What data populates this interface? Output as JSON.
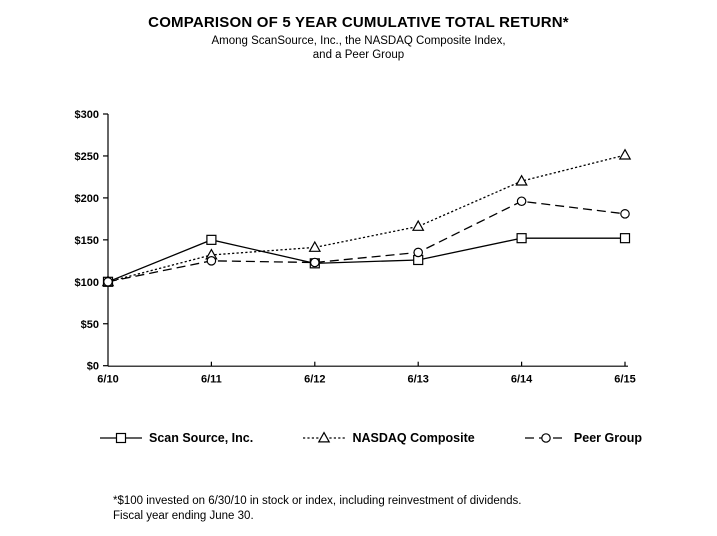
{
  "title": "COMPARISON OF 5 YEAR CUMULATIVE TOTAL RETURN*",
  "subtitle_line1": "Among ScanSource, Inc., the NASDAQ Composite Index,",
  "subtitle_line2": "and a Peer Group",
  "footnote_line1": "*$100 invested on 6/30/10 in stock or index, including reinvestment of dividends.",
  "footnote_line2": "Fiscal year ending June 30.",
  "colors": {
    "line": "#000000",
    "background": "#ffffff",
    "marker_fill": "#ffffff"
  },
  "chart_data": {
    "type": "line",
    "categories": [
      "6/10",
      "6/11",
      "6/12",
      "6/13",
      "6/14",
      "6/15"
    ],
    "series": [
      {
        "name": "Scan Source, Inc.",
        "marker": "square",
        "line_style": "solid",
        "values": [
          100,
          150,
          122,
          126,
          152,
          152
        ]
      },
      {
        "name": "NASDAQ Composite",
        "marker": "triangle",
        "line_style": "dotted",
        "values": [
          100,
          132,
          141,
          166,
          220,
          251
        ]
      },
      {
        "name": "Peer Group",
        "marker": "circle",
        "line_style": "dashed",
        "values": [
          100,
          125,
          123,
          135,
          196,
          181
        ]
      }
    ],
    "ytick_labels": [
      "$0",
      "$50",
      "$100",
      "$150",
      "$200",
      "$250",
      "$300"
    ],
    "ylim": [
      0,
      300
    ],
    "ytick_step": 50,
    "grid": false,
    "legend_position": "bottom"
  }
}
